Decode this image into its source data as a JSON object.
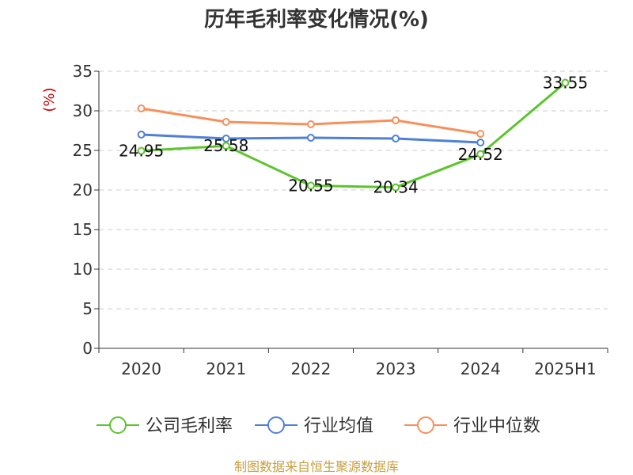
{
  "title": "历年毛利率变化情况(%)",
  "source": "制图数据来自恒生聚源数据库",
  "colors": {
    "series_company": "#5cc42c",
    "series_industry_avg": "#4e80d8",
    "series_industry_median": "#f6905a",
    "grid": "#cccccc",
    "axis": "#333333"
  },
  "chart_data": {
    "type": "line",
    "title": "历年毛利率变化情况(%)",
    "ylabel": "(%)",
    "ylim": [
      0,
      35
    ],
    "yticks": [
      0,
      5,
      10,
      15,
      20,
      25,
      30,
      35
    ],
    "grid": true,
    "legend_position": "bottom",
    "categories": [
      "2020",
      "2021",
      "2022",
      "2023",
      "2024",
      "2025H1"
    ],
    "series": [
      {
        "name": "公司毛利率",
        "values": [
          24.95,
          25.58,
          20.55,
          20.34,
          24.52,
          33.55
        ],
        "labels": [
          "24.95",
          "25.58",
          "20.55",
          "20.34",
          "24.52",
          "33.55"
        ]
      },
      {
        "name": "行业均值",
        "values": [
          27.0,
          26.5,
          26.6,
          26.5,
          26.0,
          null
        ]
      },
      {
        "name": "行业中位数",
        "values": [
          30.3,
          28.6,
          28.3,
          28.8,
          27.1,
          null
        ]
      }
    ]
  }
}
